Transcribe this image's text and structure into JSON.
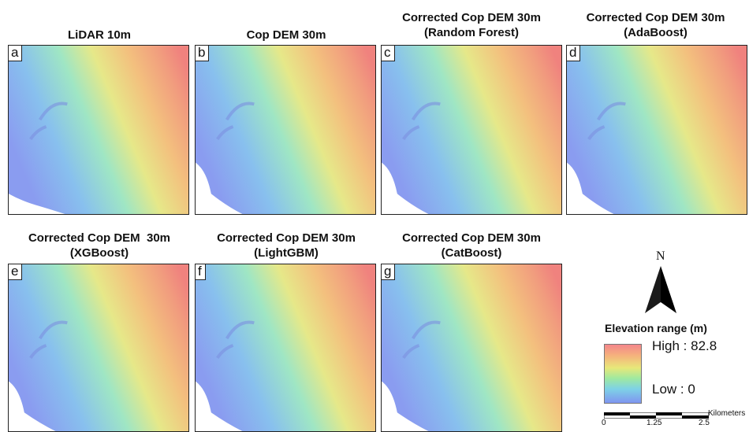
{
  "panels": [
    {
      "letter": "a",
      "title_line1": "LiDAR 10m",
      "title_line2": ""
    },
    {
      "letter": "b",
      "title_line1": "Cop DEM 30m",
      "title_line2": ""
    },
    {
      "letter": "c",
      "title_line1": "Corrected Cop DEM 30m",
      "title_line2": "(Random Forest)"
    },
    {
      "letter": "d",
      "title_line1": "Corrected Cop DEM 30m",
      "title_line2": "(AdaBoost)"
    },
    {
      "letter": "e",
      "title_line1": "Corrected Cop DEM  30m",
      "title_line2": "(XGBoost)"
    },
    {
      "letter": "f",
      "title_line1": "Corrected Cop DEM 30m",
      "title_line2": "(LightGBM)"
    },
    {
      "letter": "g",
      "title_line1": "Corrected Cop DEM 30m",
      "title_line2": "(CatBoost)"
    }
  ],
  "north_arrow": {
    "label": "N",
    "icon": "north-arrow-icon"
  },
  "legend": {
    "title": "Elevation range (m)",
    "high_label": "High : 82.8",
    "low_label": "Low : 0",
    "high_value": 82.8,
    "low_value": 0,
    "ramp_colors": [
      "#f4868b",
      "#f5b57c",
      "#e7e87a",
      "#9fe9a0",
      "#7ed2e6",
      "#7f95f0"
    ]
  },
  "scale_bar": {
    "ticks": [
      "0",
      "1.25",
      "2.5"
    ],
    "unit": "Kilometers"
  }
}
